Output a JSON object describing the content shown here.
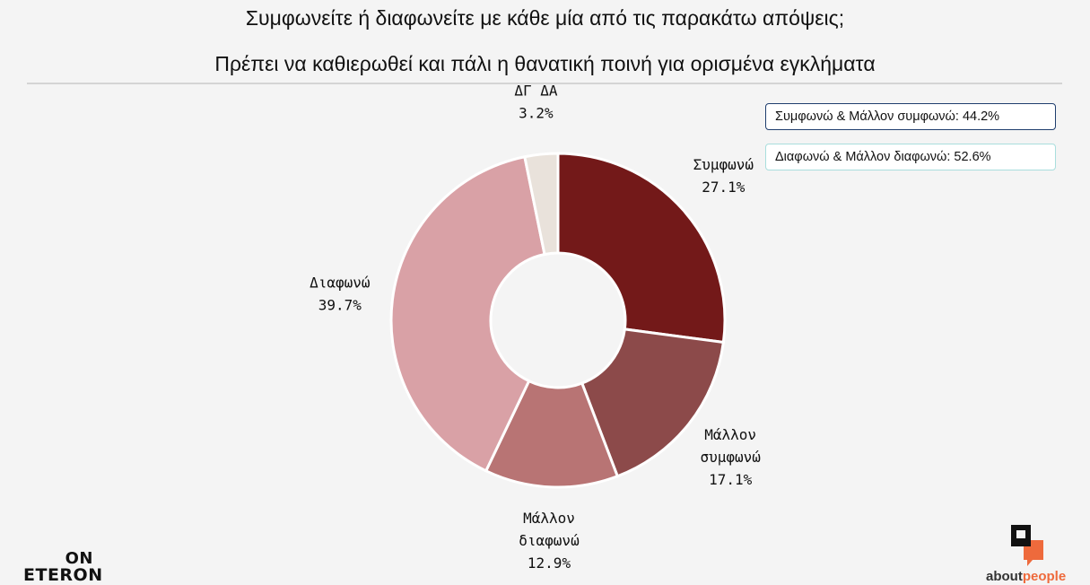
{
  "header": {
    "title_line1": "Συμφωνείτε ή διαφωνείτε με κάθε μία από τις παρακάτω απόψεις;",
    "title_line2": "Πρέπει να καθιερωθεί και πάλι η θανατική ποινή για ορισμένα εγκλήματα"
  },
  "summary": {
    "agree_total": "Συμφωνώ & Μάλλον συμφωνώ: 44.2%",
    "disagree_total": "Διαφωνώ & Μάλλον διαφωνώ: 52.6%",
    "agree_border_color": "#1f3e6e",
    "disagree_border_color": "#a9dedd"
  },
  "chart_data": {
    "type": "pie",
    "donut": true,
    "start": "top, clockwise",
    "slices": [
      {
        "label_lines": [
          "Συμφωνώ"
        ],
        "value": 27.1,
        "value_label": "27.1%",
        "color": "#731919"
      },
      {
        "label_lines": [
          "Μάλλον",
          "συμφωνώ"
        ],
        "value": 17.1,
        "value_label": "17.1%",
        "color": "#8c4a4a"
      },
      {
        "label_lines": [
          "Μάλλον",
          "διαφωνώ"
        ],
        "value": 12.9,
        "value_label": "12.9%",
        "color": "#b87474"
      },
      {
        "label_lines": [
          "Διαφωνώ"
        ],
        "value": 39.7,
        "value_label": "39.7%",
        "color": "#d9a1a6"
      },
      {
        "label_lines": [
          "ΔΓ ΔΑ"
        ],
        "value": 3.2,
        "value_label": "3.2%",
        "color": "#e9e2db"
      }
    ]
  },
  "branding": {
    "left_top": "ON",
    "left_bottom": "ETERON",
    "right_word_part1": "about",
    "right_word_part2": "people",
    "right_accent_color": "#ee6a3c"
  }
}
